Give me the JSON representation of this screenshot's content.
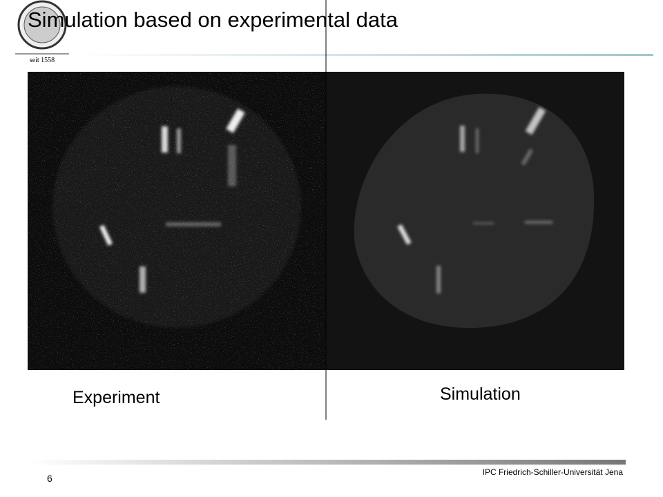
{
  "header": {
    "title": "Simulation based on experimental data",
    "logo_text": "seit 1558"
  },
  "panels": [
    {
      "label": "Experiment"
    },
    {
      "label": "Simulation"
    }
  ],
  "footer": {
    "page": "6",
    "institution": "IPC Friedrich-Schiller-Universität Jena"
  }
}
